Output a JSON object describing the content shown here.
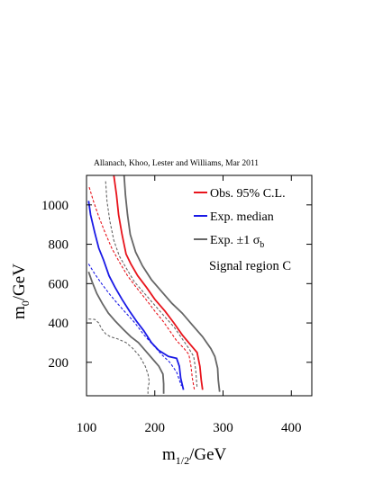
{
  "credit": "Allanach, Khoo, Lester and Williams, Mar 2011",
  "chart_data": {
    "type": "line",
    "title": "",
    "annotation": "Signal region C",
    "xlabel": {
      "main": "m",
      "sub": "1/2",
      "unit": "/GeV"
    },
    "ylabel": {
      "main": "m",
      "sub": "0",
      "unit": "/GeV"
    },
    "xlim": [
      100,
      430
    ],
    "ylim": [
      30,
      1150
    ],
    "xticks": [
      100,
      200,
      300,
      400
    ],
    "yticks": [
      200,
      400,
      600,
      800,
      1000
    ],
    "grid": false,
    "legend": {
      "placement": "top-right",
      "entries": [
        {
          "label": "Obs. 95% C.L.",
          "color": "#e8141c"
        },
        {
          "label": "Exp. median",
          "color": "#1a1ae6"
        },
        {
          "label": "Exp. ±1 σ",
          "sub": "b",
          "color": "#666666"
        }
      ]
    },
    "series": [
      {
        "name": "Obs. 95% C.L.",
        "color": "#e8141c",
        "style": "solid",
        "x": [
          140,
          144,
          147,
          152,
          158,
          165,
          175,
          188,
          200,
          215,
          228,
          240,
          252,
          262,
          266,
          268,
          270
        ],
        "y": [
          1150,
          1050,
          950,
          850,
          750,
          700,
          640,
          580,
          520,
          460,
          400,
          340,
          290,
          250,
          180,
          110,
          60
        ]
      },
      {
        "name": "Exp. median",
        "color": "#1a1ae6",
        "style": "solid",
        "x": [
          103,
          106,
          112,
          118,
          125,
          133,
          142,
          152,
          163,
          173,
          184,
          195,
          206,
          220,
          232,
          236,
          238,
          242
        ],
        "y": [
          1020,
          950,
          860,
          780,
          720,
          640,
          580,
          520,
          460,
          410,
          360,
          300,
          260,
          230,
          220,
          180,
          120,
          60
        ]
      },
      {
        "name": "",
        "color": "#e8141c",
        "style": "dashed",
        "x": [
          104,
          110,
          118,
          127,
          137,
          148,
          160,
          173,
          187,
          200,
          212,
          222,
          232,
          243,
          250,
          253,
          255,
          258
        ],
        "y": [
          1090,
          1020,
          940,
          860,
          780,
          710,
          640,
          580,
          520,
          460,
          410,
          360,
          310,
          270,
          240,
          180,
          120,
          60
        ]
      },
      {
        "name": "",
        "color": "#1a1ae6",
        "style": "dashed",
        "x": [
          103,
          112,
          122,
          133,
          145,
          158,
          171,
          184,
          197,
          210,
          222,
          232,
          239
        ],
        "y": [
          700,
          650,
          600,
          550,
          500,
          450,
          400,
          340,
          290,
          240,
          200,
          150,
          80
        ]
      },
      {
        "name": "",
        "color": "#666666",
        "style": "solid",
        "x": [
          155,
          157,
          160,
          164,
          172,
          182,
          195,
          210,
          225,
          240,
          255,
          270,
          282,
          288,
          292,
          293,
          295
        ],
        "y": [
          1150,
          1050,
          950,
          850,
          760,
          690,
          620,
          560,
          500,
          450,
          390,
          330,
          270,
          230,
          170,
          110,
          50
        ]
      },
      {
        "name": "",
        "color": "#666666",
        "style": "solid",
        "x": [
          103,
          108,
          115,
          123,
          132,
          142,
          153,
          165,
          176,
          186,
          196,
          206,
          212,
          213,
          213
        ],
        "y": [
          660,
          610,
          550,
          500,
          450,
          410,
          370,
          330,
          300,
          260,
          220,
          180,
          140,
          90,
          40
        ]
      },
      {
        "name": "",
        "color": "#666666",
        "style": "dashed",
        "x": [
          128,
          130,
          134,
          140,
          148,
          158,
          170,
          185,
          200,
          215,
          228,
          240,
          250,
          257,
          260,
          262
        ],
        "y": [
          1120,
          1020,
          920,
          820,
          740,
          680,
          610,
          550,
          490,
          430,
          380,
          320,
          270,
          230,
          160,
          70
        ]
      },
      {
        "name": "",
        "color": "#666666",
        "style": "dashed",
        "x": [
          103,
          112,
          118,
          122,
          128,
          135,
          145,
          158,
          168,
          178,
          186,
          190,
          192,
          190,
          190
        ],
        "y": [
          420,
          418,
          400,
          370,
          345,
          330,
          320,
          300,
          270,
          230,
          180,
          140,
          100,
          70,
          40
        ]
      }
    ]
  }
}
